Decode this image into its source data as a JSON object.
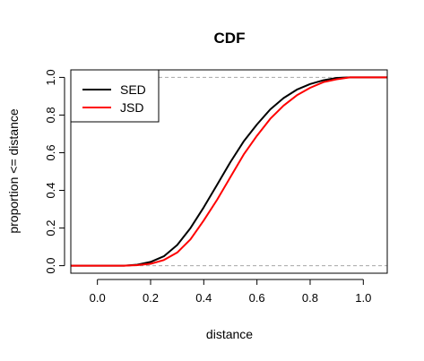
{
  "chart_data": {
    "type": "line",
    "title": "CDF",
    "xlabel": "distance",
    "ylabel": "proportion <= distance",
    "xlim": [
      -0.1,
      1.09
    ],
    "ylim": [
      -0.04,
      1.04
    ],
    "xticks": [
      0.0,
      0.2,
      0.4,
      0.6,
      0.8,
      1.0
    ],
    "xtick_labels": [
      "0.0",
      "0.2",
      "0.4",
      "0.6",
      "0.8",
      "1.0"
    ],
    "yticks": [
      0.0,
      0.2,
      0.4,
      0.6,
      0.8,
      1.0
    ],
    "ytick_labels": [
      "0.0",
      "0.2",
      "0.4",
      "0.6",
      "0.8",
      "1.0"
    ],
    "reference_lines": [
      0,
      1
    ],
    "legend_position": "top-left",
    "series": [
      {
        "name": "SED",
        "color": "#000000",
        "x": [
          -0.1,
          0.0,
          0.1,
          0.15,
          0.2,
          0.25,
          0.3,
          0.35,
          0.4,
          0.45,
          0.5,
          0.55,
          0.6,
          0.65,
          0.7,
          0.75,
          0.8,
          0.85,
          0.9,
          0.95,
          1.0,
          1.09
        ],
        "y": [
          0.0,
          0.0,
          0.0,
          0.005,
          0.02,
          0.05,
          0.11,
          0.2,
          0.31,
          0.43,
          0.55,
          0.66,
          0.75,
          0.83,
          0.89,
          0.935,
          0.965,
          0.985,
          0.997,
          1.0,
          1.0,
          1.0
        ]
      },
      {
        "name": "JSD",
        "color": "#ff0000",
        "x": [
          -0.1,
          0.0,
          0.1,
          0.15,
          0.2,
          0.25,
          0.3,
          0.35,
          0.4,
          0.45,
          0.5,
          0.55,
          0.6,
          0.65,
          0.7,
          0.75,
          0.8,
          0.85,
          0.9,
          0.95,
          1.0,
          1.09
        ],
        "y": [
          0.0,
          0.0,
          0.0,
          0.003,
          0.01,
          0.03,
          0.07,
          0.14,
          0.24,
          0.35,
          0.47,
          0.59,
          0.69,
          0.78,
          0.85,
          0.905,
          0.945,
          0.975,
          0.99,
          1.0,
          1.0,
          1.0
        ]
      }
    ]
  }
}
